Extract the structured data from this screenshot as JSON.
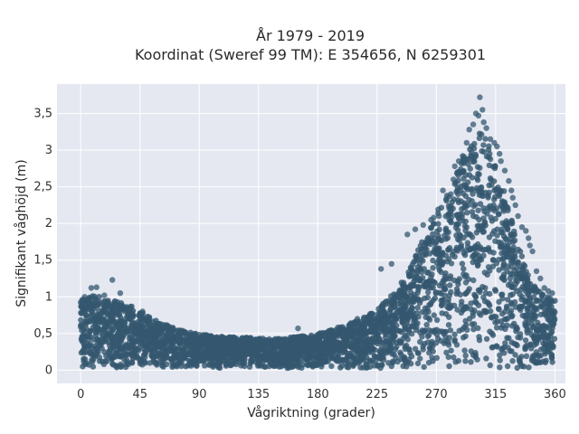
{
  "chart_data": {
    "type": "scatter",
    "title_line1": "År 1979 - 2019",
    "title_line2": "Koordinat (Sweref 99 TM): E 354656, N 6259301",
    "xlabel": "Vågriktning (grader)",
    "ylabel": "Signifikant våghöjd (m)",
    "xlim": [
      -18,
      368
    ],
    "ylim": [
      -0.18,
      3.9
    ],
    "x_ticks": [
      0,
      45,
      90,
      135,
      180,
      225,
      270,
      315,
      360
    ],
    "x_tick_labels": [
      "0",
      "45",
      "90",
      "135",
      "180",
      "225",
      "270",
      "315",
      "360"
    ],
    "y_ticks": [
      0,
      0.5,
      1,
      1.5,
      2,
      2.5,
      3,
      3.5
    ],
    "y_tick_labels": [
      "0",
      "0,5",
      "1",
      "1,5",
      "2",
      "2,5",
      "3",
      "3,5"
    ],
    "grid": true,
    "colors": {
      "plot_bg": "#e5e8f1",
      "grid": "#ffffff",
      "marker": "#34586f"
    },
    "envelope": {
      "x": [
        0,
        5,
        10,
        15,
        20,
        25,
        30,
        35,
        40,
        45,
        50,
        55,
        60,
        65,
        70,
        75,
        80,
        85,
        90,
        95,
        100,
        105,
        110,
        115,
        120,
        125,
        130,
        135,
        140,
        145,
        150,
        155,
        160,
        165,
        170,
        175,
        180,
        185,
        190,
        195,
        200,
        205,
        210,
        215,
        220,
        225,
        230,
        235,
        240,
        245,
        250,
        255,
        260,
        265,
        270,
        275,
        280,
        285,
        290,
        295,
        300,
        305,
        310,
        315,
        320,
        325,
        330,
        335,
        340,
        345,
        350,
        355,
        360
      ],
      "y_max": [
        0.98,
        1.0,
        1.02,
        1.0,
        0.95,
        0.95,
        0.92,
        0.9,
        0.86,
        0.8,
        0.74,
        0.7,
        0.66,
        0.62,
        0.58,
        0.55,
        0.53,
        0.51,
        0.49,
        0.48,
        0.47,
        0.46,
        0.46,
        0.45,
        0.45,
        0.45,
        0.45,
        0.44,
        0.44,
        0.43,
        0.43,
        0.44,
        0.45,
        0.46,
        0.47,
        0.48,
        0.5,
        0.52,
        0.55,
        0.58,
        0.62,
        0.65,
        0.68,
        0.72,
        0.78,
        0.85,
        0.92,
        1.0,
        1.1,
        1.25,
        1.4,
        1.6,
        1.8,
        2.0,
        2.15,
        2.3,
        2.5,
        2.7,
        2.9,
        3.1,
        3.2,
        3.25,
        3.1,
        2.85,
        2.55,
        2.2,
        1.85,
        1.55,
        1.3,
        1.15,
        1.05,
        1.0,
        0.95
      ]
    },
    "outliers": [
      {
        "x": 24,
        "y": 1.23
      },
      {
        "x": 12,
        "y": 1.13
      },
      {
        "x": 8,
        "y": 1.12
      },
      {
        "x": 30,
        "y": 1.05
      },
      {
        "x": 47,
        "y": 0.8
      },
      {
        "x": 70,
        "y": 0.58
      },
      {
        "x": 165,
        "y": 0.57
      },
      {
        "x": 210,
        "y": 0.7
      },
      {
        "x": 228,
        "y": 1.38
      },
      {
        "x": 236,
        "y": 1.45
      },
      {
        "x": 248,
        "y": 1.85
      },
      {
        "x": 254,
        "y": 1.92
      },
      {
        "x": 260,
        "y": 1.98
      },
      {
        "x": 266,
        "y": 2.05
      },
      {
        "x": 268,
        "y": 2.08
      },
      {
        "x": 272,
        "y": 2.1
      },
      {
        "x": 275,
        "y": 2.45
      },
      {
        "x": 278,
        "y": 2.38
      },
      {
        "x": 283,
        "y": 2.6
      },
      {
        "x": 284,
        "y": 2.78
      },
      {
        "x": 287,
        "y": 2.85
      },
      {
        "x": 290,
        "y": 2.92
      },
      {
        "x": 293,
        "y": 3.1
      },
      {
        "x": 295,
        "y": 3.28
      },
      {
        "x": 298,
        "y": 3.35
      },
      {
        "x": 300,
        "y": 3.5
      },
      {
        "x": 302,
        "y": 3.47
      },
      {
        "x": 303,
        "y": 3.72
      },
      {
        "x": 305,
        "y": 3.55
      },
      {
        "x": 306,
        "y": 3.38
      },
      {
        "x": 308,
        "y": 3.3
      },
      {
        "x": 311,
        "y": 3.15
      },
      {
        "x": 314,
        "y": 3.1
      },
      {
        "x": 316,
        "y": 3.05
      },
      {
        "x": 319,
        "y": 2.85
      },
      {
        "x": 322,
        "y": 2.72
      },
      {
        "x": 325,
        "y": 2.58
      },
      {
        "x": 327,
        "y": 2.45
      },
      {
        "x": 330,
        "y": 2.25
      },
      {
        "x": 332,
        "y": 2.1
      },
      {
        "x": 335,
        "y": 1.95
      },
      {
        "x": 338,
        "y": 1.9
      },
      {
        "x": 341,
        "y": 1.7
      },
      {
        "x": 343,
        "y": 1.62
      },
      {
        "x": 346,
        "y": 1.35
      },
      {
        "x": 349,
        "y": 1.25
      },
      {
        "x": 352,
        "y": 1.12
      },
      {
        "x": 355,
        "y": 1.08
      },
      {
        "x": 358,
        "y": 1.05
      },
      {
        "x": 328,
        "y": 2.35
      },
      {
        "x": 318,
        "y": 2.95
      },
      {
        "x": 286,
        "y": 2.7
      },
      {
        "x": 281,
        "y": 2.4
      },
      {
        "x": 340,
        "y": 1.8
      },
      {
        "x": 3,
        "y": 1.0
      },
      {
        "x": 18,
        "y": 1.02
      }
    ]
  }
}
